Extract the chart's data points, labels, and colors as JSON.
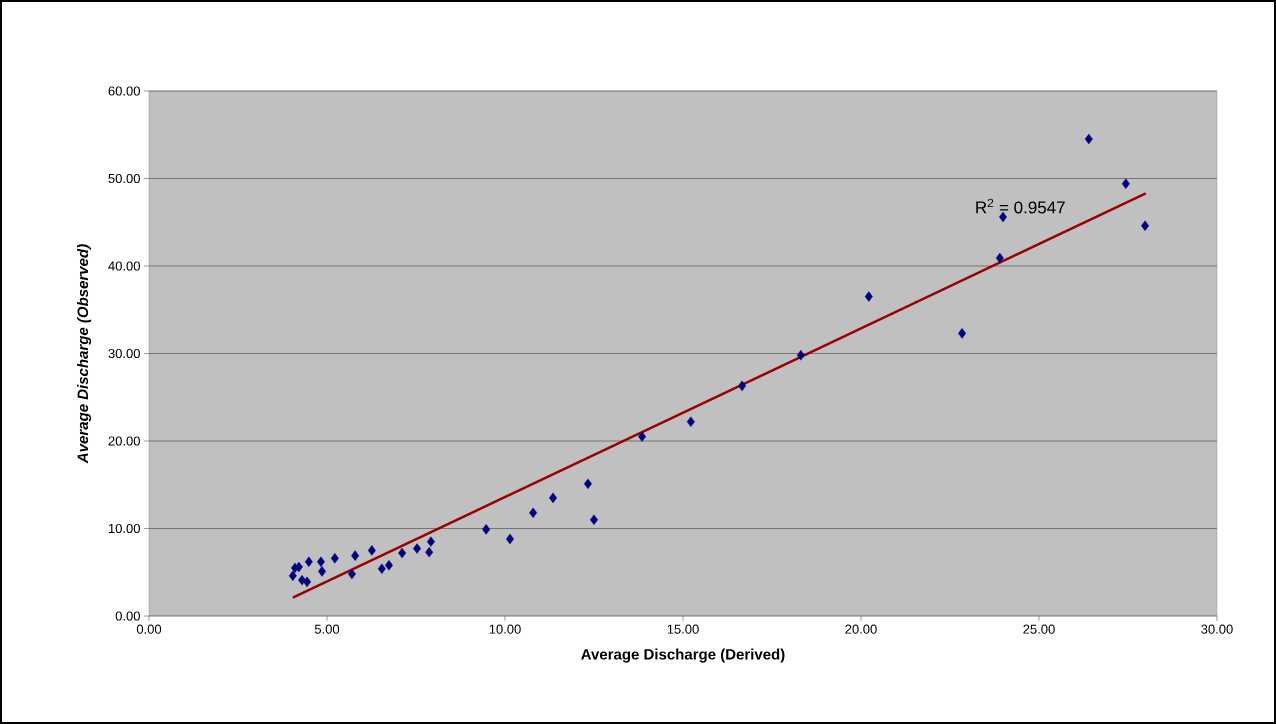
{
  "chart_data": {
    "type": "scatter",
    "xlabel": "Average Discharge (Derived)",
    "ylabel": "Average Discharge (Observed)",
    "annotations": [
      "R$^{2}$ = 0.9547"
    ],
    "xlim": [
      0,
      30
    ],
    "ylim": [
      0,
      60
    ],
    "xticks": [
      {
        "value": 0,
        "label": "0.00"
      },
      {
        "value": 5,
        "label": "5.00"
      },
      {
        "value": 10,
        "label": "10.00"
      },
      {
        "value": 15,
        "label": "15.00"
      },
      {
        "value": 20,
        "label": "20.00"
      },
      {
        "value": 25,
        "label": "25.00"
      },
      {
        "value": 30,
        "label": "30.00"
      }
    ],
    "yticks": [
      {
        "value": 0,
        "label": "0.00"
      },
      {
        "value": 10,
        "label": "10.00"
      },
      {
        "value": 20,
        "label": "20.00"
      },
      {
        "value": 30,
        "label": "30.00"
      },
      {
        "value": 40,
        "label": "40.00"
      },
      {
        "value": 50,
        "label": "50.00"
      },
      {
        "value": 60,
        "label": "60.00"
      }
    ],
    "grid": "y",
    "series": [
      {
        "color": "#000080",
        "marker": "diamond",
        "x": [
          4.04,
          4.1,
          4.21,
          4.3,
          4.44,
          4.49,
          4.83,
          4.86,
          5.22,
          5.7,
          5.79,
          6.26,
          6.54,
          6.74,
          7.11,
          7.53,
          7.87,
          7.92,
          9.47,
          10.14,
          10.79,
          11.35,
          12.33,
          12.5,
          13.85,
          15.22,
          16.66,
          18.31,
          20.22,
          22.84,
          23.99,
          23.9,
          26.4,
          27.44,
          27.98
        ],
        "values": [
          4.6,
          5.5,
          5.6,
          4.1,
          3.9,
          6.2,
          6.2,
          5.1,
          6.6,
          4.8,
          6.9,
          7.5,
          5.4,
          5.8,
          7.2,
          7.7,
          7.3,
          8.5,
          9.9,
          8.8,
          11.8,
          13.5,
          15.1,
          11.0,
          20.5,
          22.2,
          26.3,
          29.8,
          36.5,
          32.3,
          45.6,
          40.9,
          54.5,
          49.4,
          44.6
        ]
      },
      {
        "type": "line",
        "color": "#990000",
        "marker": "none",
        "x": [
          4.04,
          28.0
        ],
        "values": [
          2.1,
          48.3
        ]
      }
    ]
  }
}
